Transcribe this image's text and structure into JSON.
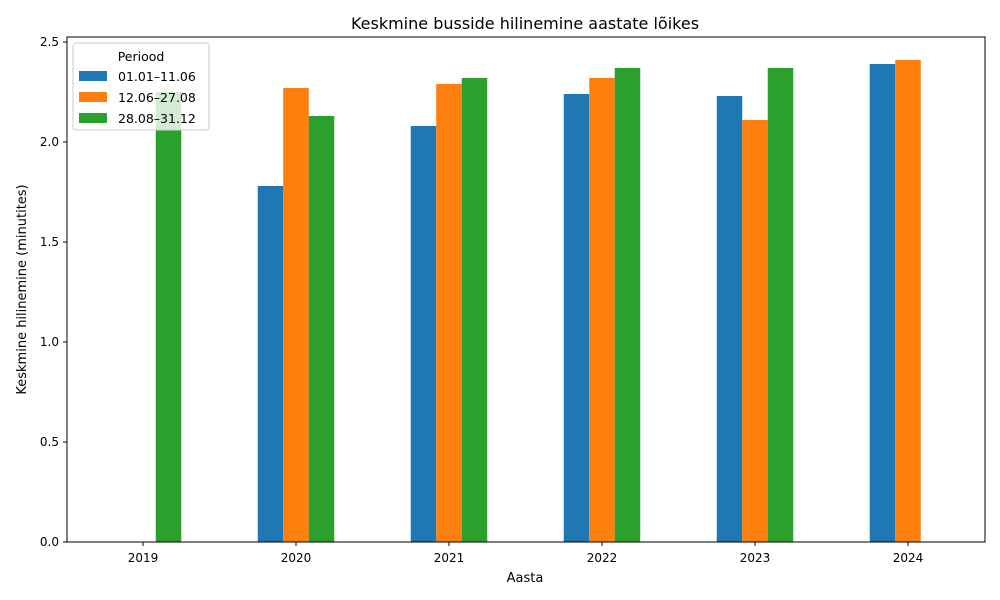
{
  "chart_data": {
    "type": "bar",
    "title": "Keskmine busside hilinemine aastate lõikes",
    "xlabel": "Aasta",
    "ylabel": "Keskmine hilinemine (minutites)",
    "categories": [
      "2019",
      "2020",
      "2021",
      "2022",
      "2023",
      "2024"
    ],
    "ylim": [
      0,
      2.525
    ],
    "yticks": [
      0.0,
      0.5,
      1.0,
      1.5,
      2.0,
      2.5
    ],
    "ytick_labels": [
      "0.0",
      "0.5",
      "1.0",
      "1.5",
      "2.0",
      "2.5"
    ],
    "grid": false,
    "legend": {
      "title": "Periood",
      "placement": "top-left"
    },
    "series": [
      {
        "name": "01.01–11.06",
        "color": "#1f77b4",
        "values": [
          null,
          1.78,
          2.08,
          2.24,
          2.23,
          2.39
        ]
      },
      {
        "name": "12.06–27.08",
        "color": "#ff7f0e",
        "values": [
          null,
          2.27,
          2.29,
          2.32,
          2.11,
          2.41
        ]
      },
      {
        "name": "28.08–31.12",
        "color": "#2ca02c",
        "values": [
          2.25,
          2.13,
          2.32,
          2.37,
          2.37,
          null
        ]
      }
    ]
  }
}
